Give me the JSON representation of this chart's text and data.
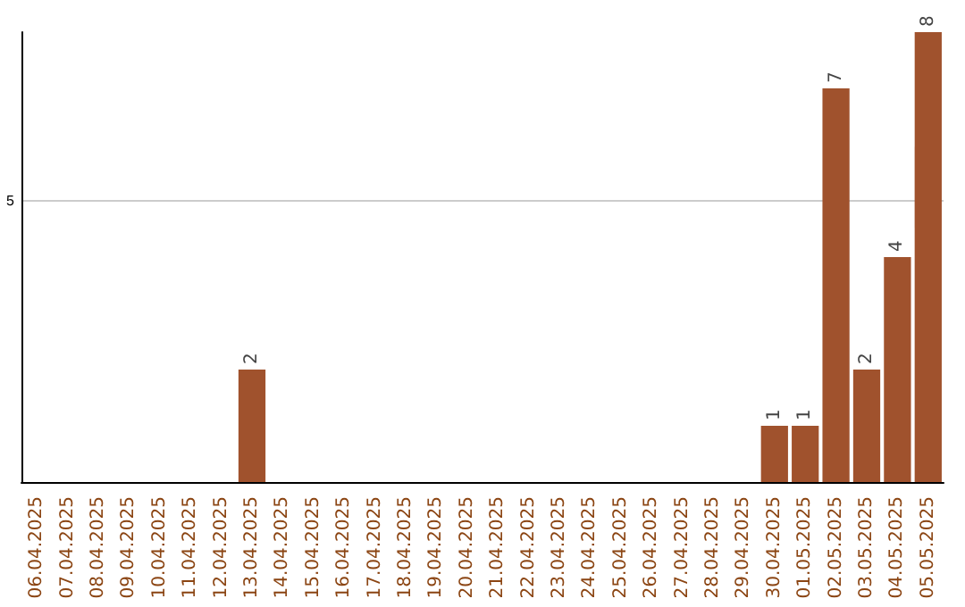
{
  "chart_data": {
    "type": "bar",
    "categories": [
      "06.04.2025",
      "07.04.2025",
      "08.04.2025",
      "09.04.2025",
      "10.04.2025",
      "11.04.2025",
      "12.04.2025",
      "13.04.2025",
      "14.04.2025",
      "15.04.2025",
      "16.04.2025",
      "17.04.2025",
      "18.04.2025",
      "19.04.2025",
      "20.04.2025",
      "21.04.2025",
      "22.04.2025",
      "23.04.2025",
      "24.04.2025",
      "25.04.2025",
      "26.04.2025",
      "27.04.2025",
      "28.04.2025",
      "29.04.2025",
      "30.04.2025",
      "01.05.2025",
      "02.05.2025",
      "03.05.2025",
      "04.05.2025",
      "05.05.2025"
    ],
    "values": [
      0,
      0,
      0,
      0,
      0,
      0,
      0,
      2,
      0,
      0,
      0,
      0,
      0,
      0,
      0,
      0,
      0,
      0,
      0,
      0,
      0,
      0,
      0,
      0,
      1,
      1,
      7,
      2,
      4,
      8
    ],
    "value_labels": [
      null,
      null,
      null,
      null,
      null,
      null,
      null,
      "2",
      null,
      null,
      null,
      null,
      null,
      null,
      null,
      null,
      null,
      null,
      null,
      null,
      null,
      null,
      null,
      null,
      "1",
      "1",
      "7",
      "2",
      "4",
      "8"
    ],
    "color": "#a0522d",
    "ylim": [
      0,
      8
    ],
    "yticks": [
      5
    ],
    "grid": "y"
  }
}
